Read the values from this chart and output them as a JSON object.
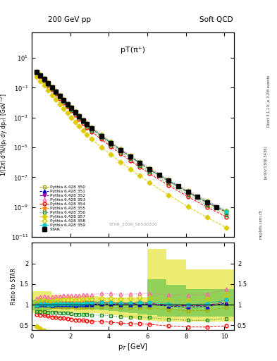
{
  "title_left": "200 GeV pp",
  "title_right": "Soft QCD",
  "plot_title": "pT(π⁺)",
  "ylabel_main": "1/(2π) d²N/(p_T dy dp_T) [GeV⁻²]",
  "ylabel_ratio": "Ratio to STAR",
  "xlabel": "p_T [GeV]",
  "watermark": "STAR_2006_S6500200",
  "side_text1": "Rivet 3.1.10; ≥ 3.2M events",
  "side_text2": "[arXiv:1306.3436]",
  "side_text3": "mcplots.cern.ch",
  "xlim": [
    0,
    10.5
  ],
  "ylim_main": [
    1e-11,
    500
  ],
  "ylim_ratio": [
    0.38,
    2.5
  ],
  "star_x": [
    0.25,
    0.45,
    0.65,
    0.85,
    1.05,
    1.25,
    1.45,
    1.65,
    1.85,
    2.05,
    2.25,
    2.45,
    2.65,
    2.85,
    3.1,
    3.6,
    4.1,
    4.6,
    5.1,
    5.6,
    6.1,
    6.6,
    7.1,
    7.6,
    8.1,
    8.6,
    9.1,
    9.6
  ],
  "star_y": [
    1.1,
    0.68,
    0.37,
    0.198,
    0.102,
    0.055,
    0.028,
    0.0148,
    0.0079,
    0.0042,
    0.0023,
    0.00122,
    0.00065,
    0.00035,
    0.00019,
    5.9e-05,
    1.98e-05,
    6.8e-06,
    2.45e-06,
    8.8e-07,
    3.4e-07,
    1.38e-07,
    5.8e-08,
    2.5e-08,
    1.08e-08,
    4.8e-09,
    2.15e-09,
    9.8e-10
  ],
  "star_yerr": [
    0.055,
    0.034,
    0.019,
    0.01,
    0.005,
    0.0028,
    0.0014,
    0.00074,
    0.0004,
    0.00021,
    0.000115,
    6.1e-05,
    3.3e-05,
    1.75e-05,
    9.5e-06,
    3e-06,
    9.9e-07,
    3.4e-07,
    1.2e-07,
    4.4e-08,
    1.7e-08,
    6.9e-09,
    2.9e-09,
    1.25e-09,
    5.4e-10,
    2.4e-10,
    1.1e-10,
    4.9e-11
  ],
  "pythia_x": [
    0.25,
    0.45,
    0.65,
    0.85,
    1.05,
    1.25,
    1.45,
    1.65,
    1.85,
    2.05,
    2.25,
    2.45,
    2.65,
    2.85,
    3.1,
    3.6,
    4.1,
    4.6,
    5.1,
    5.6,
    6.1,
    7.1,
    8.1,
    9.1,
    10.1
  ],
  "series": [
    {
      "label": "Pythia 6.428 350",
      "color": "#aaaa00",
      "linestyle": "--",
      "marker": "s",
      "markerfacecolor": "none",
      "y": [
        1.05,
        0.665,
        0.362,
        0.191,
        0.097,
        0.0525,
        0.0267,
        0.01415,
        0.00752,
        0.00398,
        0.00215,
        0.001148,
        0.00061,
        0.00033,
        0.000179,
        5.62e-05,
        1.87e-05,
        6.3e-06,
        2.27e-06,
        8.22e-07,
        3.15e-07,
        5.12e-08,
        9.2e-09,
        1.85e-09,
        4.2e-10
      ],
      "ratio": [
        0.955,
        0.978,
        0.979,
        0.965,
        0.951,
        0.955,
        0.954,
        0.956,
        0.952,
        0.948,
        0.935,
        0.941,
        0.938,
        0.943,
        0.942,
        0.952,
        0.944,
        0.926,
        0.927,
        0.934,
        0.926,
        0.886,
        0.852,
        0.86,
        0.93
      ]
    },
    {
      "label": "Pythia 6.428 351",
      "color": "#0000cc",
      "linestyle": "--",
      "marker": "^",
      "markerfacecolor": "#0000cc",
      "y": [
        1.08,
        0.685,
        0.374,
        0.198,
        0.101,
        0.0548,
        0.028,
        0.01487,
        0.00792,
        0.00421,
        0.00228,
        0.001219,
        0.00065,
        0.000351,
        0.000191,
        6.02e-05,
        2.01e-05,
        6.78e-06,
        2.45e-06,
        8.88e-07,
        3.42e-07,
        5.6e-08,
        1.02e-08,
        2.06e-09,
        4.7e-10
      ],
      "ratio": [
        0.982,
        1.007,
        1.011,
        1.0,
        0.99,
        0.996,
        1.0,
        1.005,
        1.003,
        1.002,
        0.991,
        0.999,
        1.0,
        1.003,
        1.005,
        1.019,
        1.015,
        0.997,
        1.0,
        1.009,
        1.006,
        0.966,
        0.944,
        0.958,
        1.04
      ]
    },
    {
      "label": "Pythia 6.428 352",
      "color": "#9900aa",
      "linestyle": "-.",
      "marker": "v",
      "markerfacecolor": "#9900aa",
      "y": [
        1.1,
        0.697,
        0.381,
        0.202,
        0.103,
        0.0561,
        0.0287,
        0.01524,
        0.00812,
        0.00432,
        0.00234,
        0.001252,
        0.000667,
        0.00036,
        0.000196,
        6.18e-05,
        2.06e-05,
        6.96e-06,
        2.51e-06,
        9.12e-07,
        3.51e-07,
        5.75e-08,
        1.05e-08,
        2.12e-09,
        4.85e-10
      ],
      "ratio": [
        1.0,
        1.025,
        1.03,
        1.02,
        1.01,
        1.02,
        1.025,
        1.03,
        1.028,
        1.029,
        1.017,
        1.026,
        1.026,
        1.029,
        1.032,
        1.047,
        1.04,
        1.024,
        1.024,
        1.036,
        1.032,
        0.991,
        0.972,
        0.986,
        1.07
      ]
    },
    {
      "label": "Pythia 6.428 353",
      "color": "#ff66aa",
      "linestyle": ":",
      "marker": "^",
      "markerfacecolor": "none",
      "y": [
        1.28,
        0.812,
        0.444,
        0.236,
        0.121,
        0.066,
        0.0339,
        0.01805,
        0.00965,
        0.00515,
        0.0028,
        0.001502,
        0.000802,
        0.000435,
        0.000237,
        7.49e-05,
        2.51e-05,
        8.5e-06,
        3.08e-06,
        1.12e-06,
        4.34e-07,
        7.17e-08,
        1.32e-08,
        2.69e-09,
        6.2e-10
      ],
      "ratio": [
        1.164,
        1.194,
        1.2,
        1.192,
        1.186,
        1.2,
        1.211,
        1.22,
        1.222,
        1.226,
        1.217,
        1.231,
        1.234,
        1.243,
        1.247,
        1.269,
        1.268,
        1.25,
        1.257,
        1.273,
        1.276,
        1.237,
        1.222,
        1.251,
        1.38
      ]
    },
    {
      "label": "Pythia 6.428 354",
      "color": "#ff0000",
      "linestyle": "--",
      "marker": "o",
      "markerfacecolor": "none",
      "y": [
        0.84,
        0.513,
        0.274,
        0.143,
        0.0714,
        0.0381,
        0.0191,
        0.00999,
        0.00523,
        0.00273,
        0.001456,
        0.000768,
        0.000402,
        0.000214,
        0.000114,
        3.5e-05,
        1.14e-05,
        3.76e-06,
        1.33e-06,
        4.73e-07,
        1.78e-07,
        2.82e-08,
        4.99e-09,
        9.87e-10,
        2.19e-10
      ],
      "ratio": [
        0.764,
        0.754,
        0.741,
        0.722,
        0.7,
        0.693,
        0.682,
        0.675,
        0.662,
        0.65,
        0.633,
        0.63,
        0.619,
        0.611,
        0.6,
        0.593,
        0.576,
        0.553,
        0.543,
        0.537,
        0.524,
        0.487,
        0.462,
        0.459,
        0.487
      ]
    },
    {
      "label": "Pythia 6.428 355",
      "color": "#ff8800",
      "linestyle": "--",
      "marker": "*",
      "markerfacecolor": "#ff8800",
      "y": [
        1.11,
        0.704,
        0.385,
        0.204,
        0.104,
        0.0568,
        0.0291,
        0.01546,
        0.00824,
        0.00439,
        0.00238,
        0.001274,
        0.00068,
        0.000368,
        0.0002,
        6.32e-05,
        2.11e-05,
        7.14e-06,
        2.58e-06,
        9.38e-07,
        3.61e-07,
        5.93e-08,
        1.09e-08,
        2.2e-09,
        5.03e-10
      ],
      "ratio": [
        1.009,
        1.035,
        1.041,
        1.03,
        1.02,
        1.033,
        1.039,
        1.045,
        1.044,
        1.045,
        1.035,
        1.045,
        1.046,
        1.051,
        1.053,
        1.071,
        1.066,
        1.05,
        1.053,
        1.066,
        1.062,
        1.023,
        1.009,
        1.023,
        1.12
      ]
    },
    {
      "label": "Pythia 6.428 356",
      "color": "#228b22",
      "linestyle": ":",
      "marker": "s",
      "markerfacecolor": "none",
      "y": [
        0.91,
        0.57,
        0.309,
        0.163,
        0.0826,
        0.0444,
        0.0225,
        0.01186,
        0.00626,
        0.00329,
        0.001768,
        0.000934,
        0.000494,
        0.000265,
        0.000142,
        4.4e-05,
        1.45e-05,
        4.83e-06,
        1.72e-06,
        6.17e-07,
        2.34e-07,
        3.74e-08,
        6.72e-09,
        1.34e-09,
        3.01e-10
      ],
      "ratio": [
        0.827,
        0.838,
        0.835,
        0.823,
        0.81,
        0.807,
        0.804,
        0.801,
        0.793,
        0.784,
        0.768,
        0.766,
        0.76,
        0.757,
        0.747,
        0.745,
        0.732,
        0.71,
        0.702,
        0.701,
        0.688,
        0.646,
        0.622,
        0.623,
        0.668
      ]
    },
    {
      "label": "Pythia 6.428 357",
      "color": "#ddcc00",
      "linestyle": "--",
      "marker": "D",
      "markerfacecolor": "#ddcc00",
      "y": [
        0.52,
        0.285,
        0.14,
        0.0683,
        0.0322,
        0.0163,
        0.0079,
        0.00395,
        0.00198,
        0.001,
        0.000514,
        0.000261,
        0.000134,
        7.03e-05,
        3.65e-05,
        1.05e-05,
        3.27e-06,
        1.04e-06,
        3.56e-07,
        1.22e-07,
        4.44e-08,
        6.44e-09,
        1.07e-09,
        1.99e-10,
        4.2e-11
      ],
      "ratio": [
        0.473,
        0.419,
        0.378,
        0.345,
        0.316,
        0.296,
        0.282,
        0.267,
        0.251,
        0.238,
        0.223,
        0.214,
        0.206,
        0.201,
        0.192,
        0.178,
        0.165,
        0.153,
        0.145,
        0.139,
        0.131,
        0.111,
        0.099,
        0.093,
        0.093
      ]
    },
    {
      "label": "Pythia 6.428 358",
      "color": "#cccc00",
      "linestyle": ":",
      "marker": "D",
      "markerfacecolor": "none",
      "y": [
        1.18,
        0.748,
        0.409,
        0.217,
        0.111,
        0.0607,
        0.0311,
        0.01654,
        0.00883,
        0.00472,
        0.00256,
        0.001373,
        0.000734,
        0.000398,
        0.000217,
        6.86e-05,
        2.3e-05,
        7.79e-06,
        2.82e-06,
        1.025e-06,
        3.96e-07,
        6.53e-08,
        1.2e-08,
        2.44e-09,
        5.6e-10
      ],
      "ratio": [
        1.073,
        1.1,
        1.106,
        1.096,
        1.088,
        1.104,
        1.111,
        1.118,
        1.118,
        1.124,
        1.113,
        1.126,
        1.13,
        1.137,
        1.142,
        1.162,
        1.162,
        1.146,
        1.151,
        1.165,
        1.165,
        1.127,
        1.111,
        1.135,
        1.24
      ]
    },
    {
      "label": "Pythia 6.428 359",
      "color": "#00cccc",
      "linestyle": "--",
      "marker": "o",
      "markerfacecolor": "#00cccc",
      "y": [
        1.09,
        0.692,
        0.378,
        0.2,
        0.102,
        0.0557,
        0.0285,
        0.01516,
        0.00808,
        0.00431,
        0.00233,
        0.001249,
        0.000667,
        0.000361,
        0.000197,
        6.22e-05,
        2.08e-05,
        7.04e-06,
        2.55e-06,
        9.27e-07,
        3.58e-07,
        5.89e-08,
        1.08e-08,
        2.2e-09,
        5.04e-10
      ],
      "ratio": [
        0.991,
        1.018,
        1.022,
        1.01,
        1.0,
        1.013,
        1.018,
        1.024,
        1.023,
        1.026,
        1.013,
        1.024,
        1.026,
        1.031,
        1.037,
        1.054,
        1.051,
        1.035,
        1.041,
        1.053,
        1.053,
        1.017,
        1.0,
        1.023,
        1.12
      ]
    }
  ],
  "band_outer_color": "#dddd00",
  "band_inner_color": "#44bb44",
  "band_outer_alpha": 0.55,
  "band_inner_alpha": 0.55,
  "band_x": [
    0.0,
    0.5,
    1.0,
    1.5,
    2.0,
    2.5,
    3.0,
    3.5,
    4.0,
    4.5,
    5.0,
    5.5,
    6.0,
    6.5,
    7.0,
    7.5,
    8.0,
    8.5,
    9.0,
    9.5,
    10.0,
    10.5
  ],
  "band_outer_low": [
    0.8,
    0.8,
    0.84,
    0.82,
    0.82,
    0.8,
    0.79,
    0.78,
    0.74,
    0.7,
    0.66,
    0.63,
    0.61,
    0.6,
    0.6,
    0.6,
    0.6,
    0.6,
    0.6,
    0.6,
    0.6,
    0.6
  ],
  "band_outer_high": [
    1.32,
    1.32,
    1.24,
    1.22,
    1.2,
    1.22,
    1.2,
    1.18,
    1.18,
    1.18,
    1.18,
    1.18,
    2.35,
    2.35,
    2.1,
    2.1,
    1.85,
    1.85,
    1.85,
    1.85,
    1.85,
    1.85
  ],
  "band_inner_low": [
    0.87,
    0.87,
    0.9,
    0.89,
    0.9,
    0.89,
    0.88,
    0.87,
    0.85,
    0.82,
    0.79,
    0.77,
    0.74,
    0.72,
    0.71,
    0.71,
    0.71,
    0.71,
    0.71,
    0.71,
    0.71,
    0.71
  ],
  "band_inner_high": [
    1.13,
    1.13,
    1.1,
    1.09,
    1.08,
    1.09,
    1.08,
    1.07,
    1.07,
    1.07,
    1.07,
    1.07,
    1.62,
    1.62,
    1.48,
    1.48,
    1.38,
    1.38,
    1.38,
    1.38,
    1.38,
    1.38
  ]
}
